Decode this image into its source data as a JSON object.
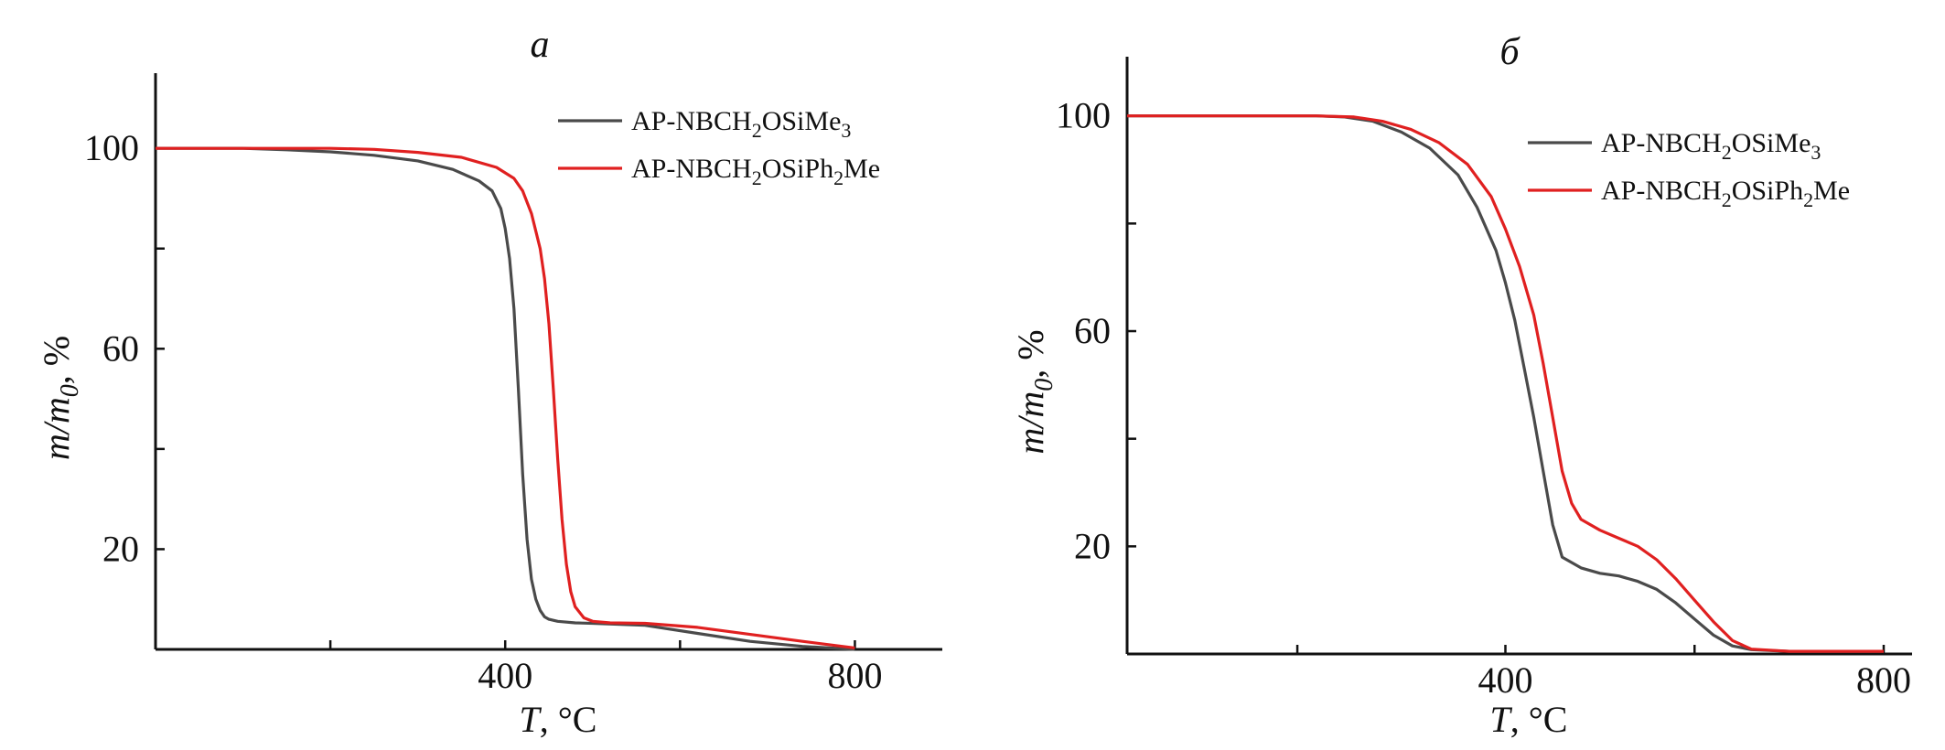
{
  "chart_data": [
    {
      "type": "line",
      "panel_label": "а",
      "xlabel_var": "T",
      "xlabel_unit": ", °C",
      "ylabel_var": "m/m",
      "ylabel_sub": "0",
      "ylabel_unit": ", %",
      "xlim": [
        0,
        900
      ],
      "ylim": [
        0,
        115
      ],
      "x_ticks": [
        200,
        400,
        600,
        800
      ],
      "x_tick_labels": [
        "",
        "400",
        "",
        "800"
      ],
      "y_ticks": [
        20,
        40,
        60,
        80,
        100
      ],
      "y_tick_labels": [
        "20",
        "",
        "60",
        "",
        "100"
      ],
      "legend_position": "top-right",
      "series": [
        {
          "name": "AP-NBCH",
          "name_sub": "2",
          "name_tail": "OSiMe",
          "name_sub2": "3",
          "color": "#4a4a4a",
          "x": [
            0,
            100,
            150,
            200,
            250,
            300,
            340,
            370,
            385,
            395,
            400,
            405,
            410,
            415,
            420,
            425,
            430,
            435,
            440,
            445,
            450,
            460,
            480,
            500,
            560,
            620,
            680,
            740,
            800
          ],
          "y": [
            100,
            100,
            99.7,
            99.3,
            98.6,
            97.5,
            95.8,
            93.5,
            91.5,
            88,
            84,
            78,
            68,
            52,
            35,
            22,
            14,
            10,
            7.8,
            6.5,
            6,
            5.6,
            5.3,
            5.2,
            4.8,
            3.2,
            1.6,
            0.6,
            0
          ]
        },
        {
          "name": "AP-NBCH",
          "name_sub": "2",
          "name_tail": "OSiPh",
          "name_sub2": "2",
          "name_tail2": "Me",
          "color": "#e02020",
          "x": [
            0,
            100,
            150,
            200,
            250,
            300,
            350,
            390,
            410,
            420,
            430,
            440,
            445,
            450,
            455,
            460,
            465,
            470,
            475,
            480,
            490,
            500,
            520,
            560,
            620,
            680,
            740,
            800
          ],
          "y": [
            100,
            100,
            100,
            100,
            99.8,
            99.2,
            98.2,
            96.2,
            94,
            91.5,
            87,
            80,
            74,
            65,
            52,
            38,
            26,
            17,
            11.5,
            8.5,
            6.3,
            5.6,
            5.3,
            5.2,
            4.4,
            3,
            1.6,
            0.3
          ]
        }
      ]
    },
    {
      "type": "line",
      "panel_label": "б",
      "xlabel_var": "T",
      "xlabel_unit": ", °C",
      "ylabel_var": "m/m",
      "ylabel_sub": "0",
      "ylabel_unit": ", %",
      "xlim": [
        0,
        830
      ],
      "ylim": [
        0,
        111
      ],
      "x_ticks": [
        180,
        400,
        600,
        800
      ],
      "x_tick_labels": [
        "",
        "400",
        "",
        "800"
      ],
      "y_ticks": [
        20,
        40,
        60,
        80,
        100
      ],
      "y_tick_labels": [
        "20",
        "",
        "60",
        "",
        "100"
      ],
      "legend_position": "top-right",
      "series": [
        {
          "name": "AP-NBCH",
          "name_sub": "2",
          "name_tail": "OSiMe",
          "name_sub2": "3",
          "color": "#4a4a4a",
          "x": [
            0,
            200,
            230,
            260,
            290,
            320,
            350,
            370,
            390,
            400,
            410,
            420,
            430,
            440,
            450,
            460,
            480,
            500,
            520,
            540,
            560,
            580,
            600,
            620,
            640,
            660,
            700,
            800
          ],
          "y": [
            100,
            100,
            99.8,
            99,
            97,
            94,
            89,
            83,
            75,
            69,
            62,
            53,
            44,
            34,
            24,
            18,
            16,
            15,
            14.5,
            13.5,
            12,
            9.5,
            6.5,
            3.5,
            1.5,
            0.8,
            0.5,
            0.5
          ]
        },
        {
          "name": "AP-NBCH",
          "name_sub": "2",
          "name_tail": "OSiPh",
          "name_sub2": "2",
          "name_tail2": "Me",
          "color": "#e02020",
          "x": [
            0,
            200,
            240,
            270,
            300,
            330,
            360,
            385,
            400,
            415,
            430,
            440,
            450,
            460,
            470,
            480,
            500,
            520,
            540,
            560,
            580,
            600,
            620,
            640,
            660,
            700,
            800
          ],
          "y": [
            100,
            100,
            99.8,
            99,
            97.5,
            95,
            91,
            85,
            79,
            72,
            63,
            54,
            44,
            34,
            28,
            25,
            23,
            21.5,
            20,
            17.5,
            14,
            10,
            6,
            2.5,
            0.9,
            0.5,
            0.5
          ]
        }
      ]
    }
  ]
}
